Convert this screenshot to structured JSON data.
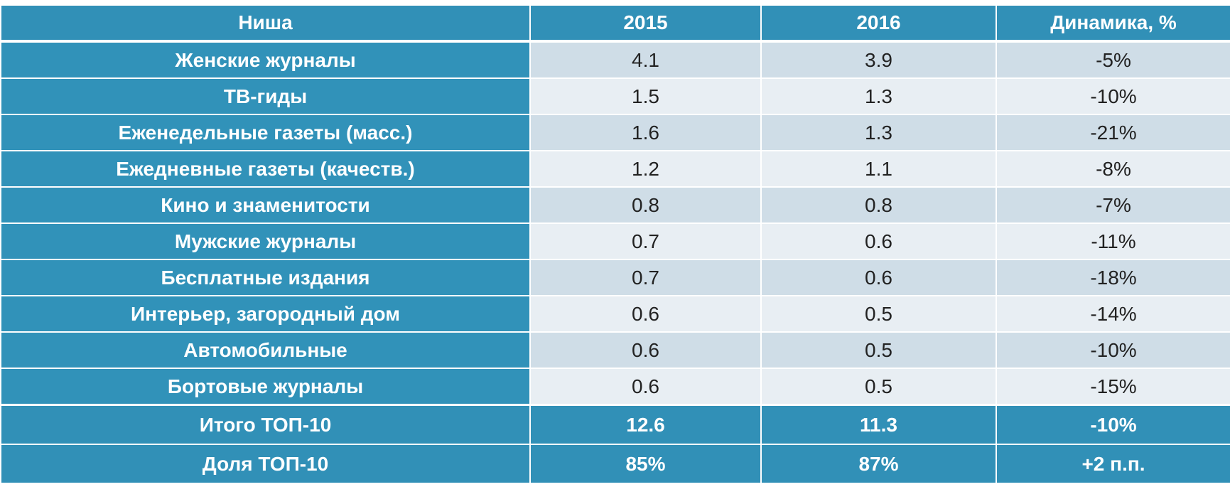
{
  "table": {
    "headers": [
      "Ниша",
      "2015",
      "2016",
      "Динамика, %"
    ],
    "rows": [
      {
        "niche": "Женские журналы",
        "y2015": "4.1",
        "y2016": "3.9",
        "change": "-5%"
      },
      {
        "niche": "ТВ-гиды",
        "y2015": "1.5",
        "y2016": "1.3",
        "change": "-10%"
      },
      {
        "niche": "Еженедельные газеты (масс.)",
        "y2015": "1.6",
        "y2016": "1.3",
        "change": "-21%"
      },
      {
        "niche": "Ежедневные газеты (качеств.)",
        "y2015": "1.2",
        "y2016": "1.1",
        "change": "-8%"
      },
      {
        "niche": "Кино и знаменитости",
        "y2015": "0.8",
        "y2016": "0.8",
        "change": "-7%"
      },
      {
        "niche": "Мужские журналы",
        "y2015": "0.7",
        "y2016": "0.6",
        "change": "-11%"
      },
      {
        "niche": "Бесплатные издания",
        "y2015": "0.7",
        "y2016": "0.6",
        "change": "-18%"
      },
      {
        "niche": "Интерьер, загородный дом",
        "y2015": "0.6",
        "y2016": "0.5",
        "change": "-14%"
      },
      {
        "niche": "Автомобильные",
        "y2015": "0.6",
        "y2016": "0.5",
        "change": "-10%"
      },
      {
        "niche": "Бортовые журналы",
        "y2015": "0.6",
        "y2016": "0.5",
        "change": "-15%"
      }
    ],
    "totals": [
      {
        "niche": "Итого ТОП-10",
        "y2015": "12.6",
        "y2016": "11.3",
        "change": "-10%"
      },
      {
        "niche": "Доля ТОП-10",
        "y2015": "85%",
        "y2016": "87%",
        "change": "+2 п.п."
      }
    ]
  },
  "colors": {
    "header_bg": "#3190b7",
    "label_bg": "#3192b9",
    "row_odd_bg": "#cfdde7",
    "row_even_bg": "#e8eef3",
    "text_light": "#ffffff",
    "text_dark": "#222222"
  }
}
